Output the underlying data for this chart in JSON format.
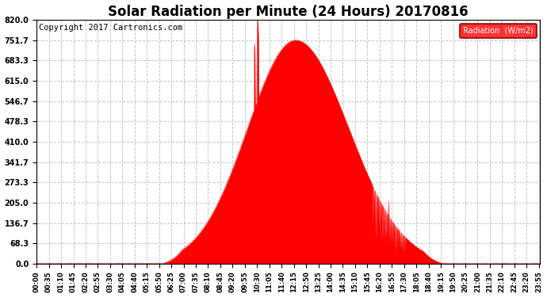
{
  "title": "Solar Radiation per Minute (24 Hours) 20170816",
  "copyright": "Copyright 2017 Cartronics.com",
  "legend_label": "Radiation  (W/m2)",
  "yticks": [
    0.0,
    68.3,
    136.7,
    205.0,
    273.3,
    341.7,
    410.0,
    478.3,
    546.7,
    615.0,
    683.3,
    751.7,
    820.0
  ],
  "ymax": 820.0,
  "ymin": 0.0,
  "fill_color": "#FF0000",
  "line_color": "#FF0000",
  "dashed_line_color": "#FF0000",
  "grid_color": "#C0C0C0",
  "background_color": "#FFFFFF",
  "title_fontsize": 12,
  "copyright_fontsize": 7.5,
  "xtick_interval_minutes": 35,
  "total_minutes": 1440,
  "sunrise_min": 355,
  "sunset_min": 1165,
  "peak_min": 740,
  "peak_val": 752.0,
  "spike1_min": 625,
  "spike1_val": 820,
  "spike2_min": 630,
  "spike2_val": 780
}
